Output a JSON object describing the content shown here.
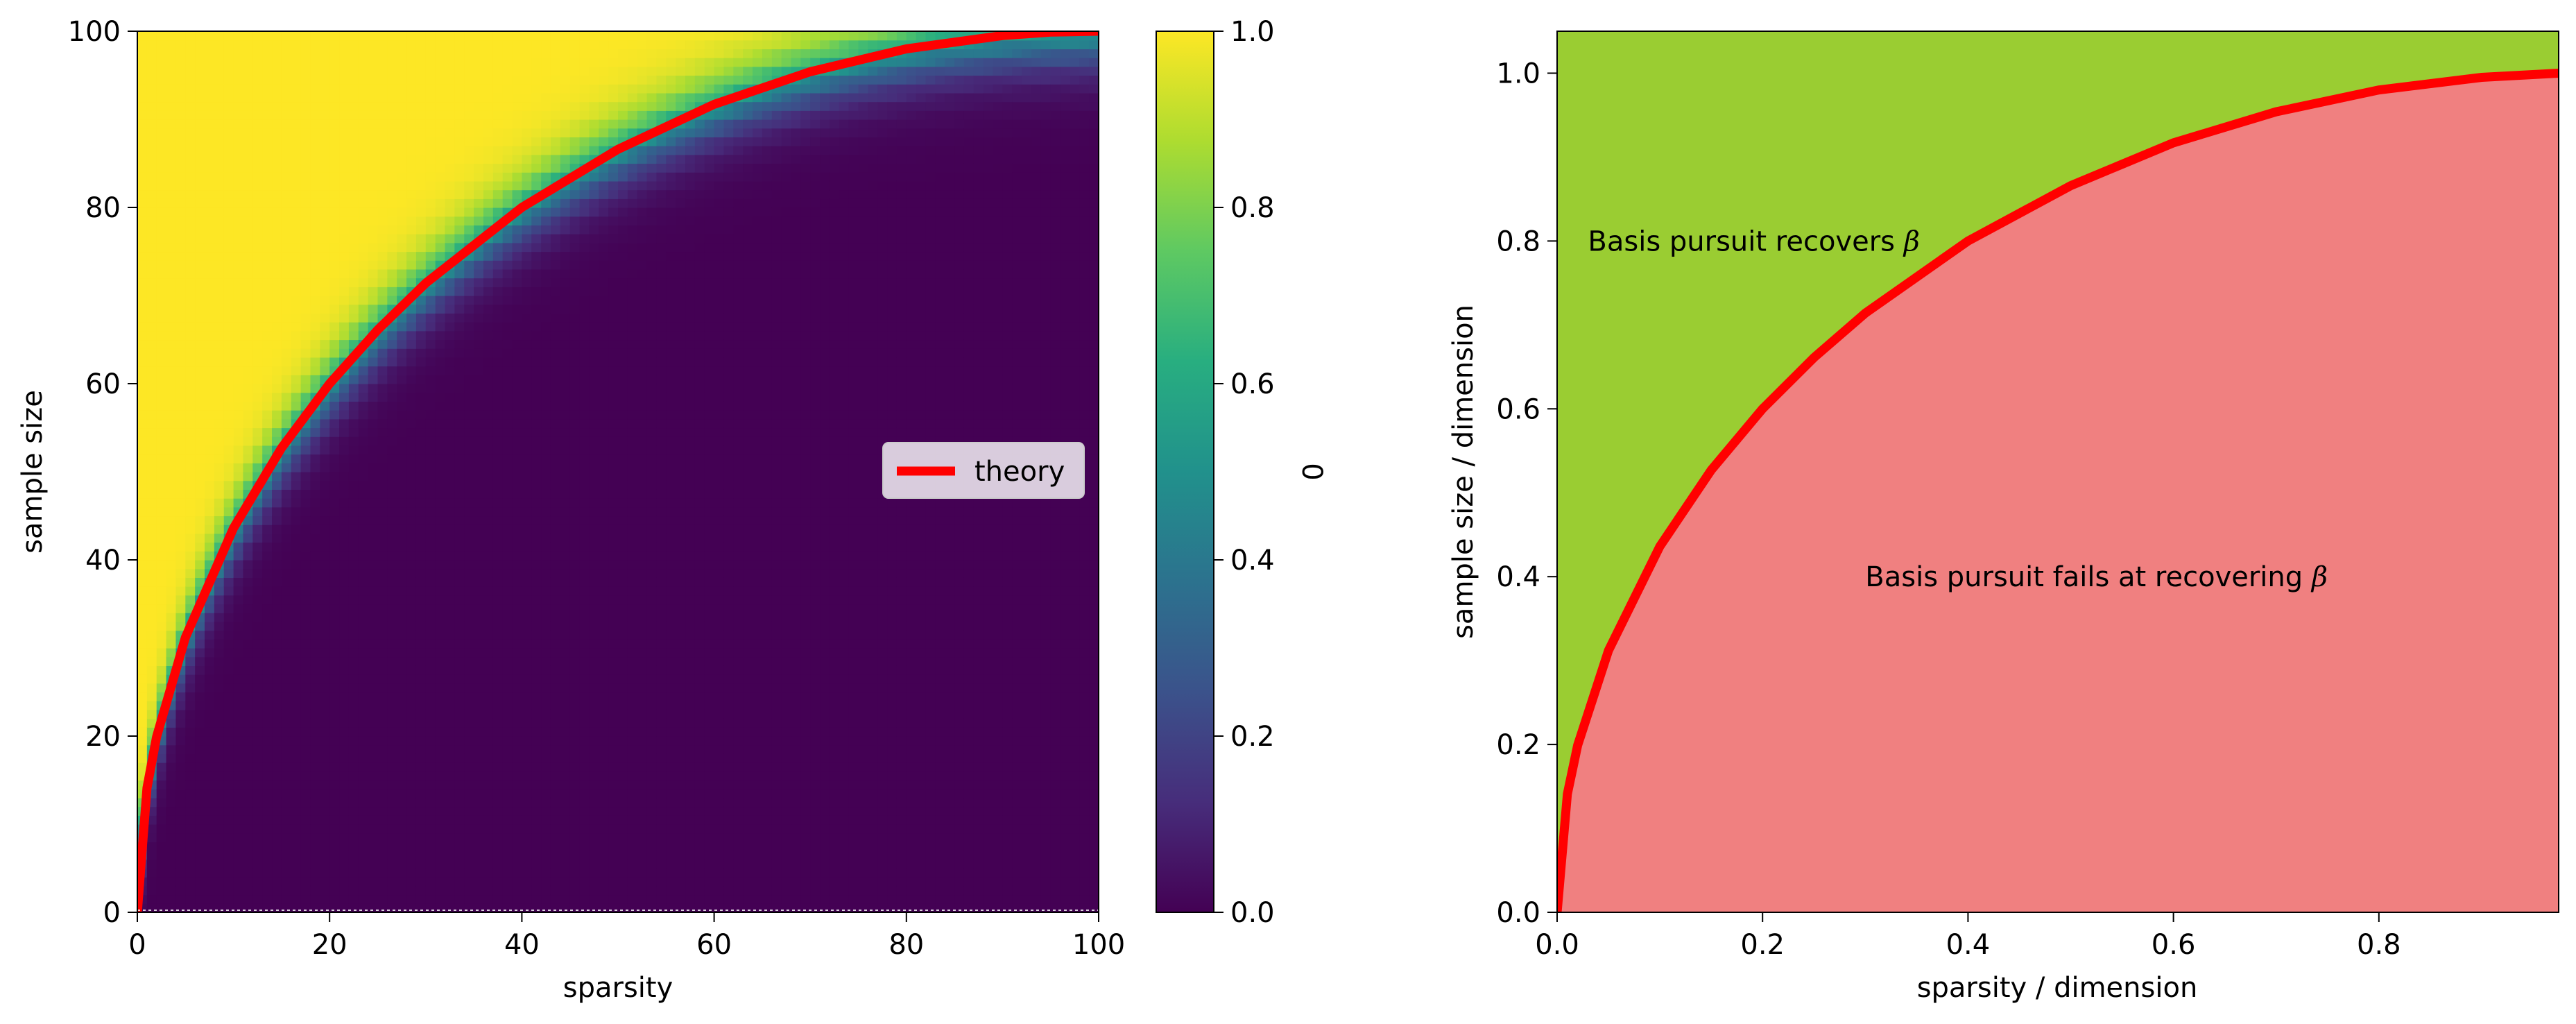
{
  "chart_data": [
    {
      "type": "heatmap",
      "xlabel": "sparsity",
      "ylabel": "sample size",
      "xlim": [
        0,
        100
      ],
      "ylim": [
        0,
        100
      ],
      "xticks": [
        "0",
        "20",
        "40",
        "60",
        "80",
        "100"
      ],
      "yticks": [
        "0",
        "20",
        "40",
        "60",
        "80",
        "100"
      ],
      "colormap": "viridis",
      "cell_size": 1,
      "value_range": [
        0,
        1
      ],
      "transition_width": 4,
      "transition_boundary": "n = 100 * sqrt(1 - (1 - s/100)^2)",
      "theory_series": {
        "name": "theory",
        "color": "#ff0000",
        "x": [
          0,
          1,
          2,
          5,
          10,
          15,
          20,
          25,
          30,
          40,
          50,
          60,
          70,
          80,
          90,
          95,
          100
        ],
        "y": [
          0,
          14.1,
          19.9,
          31.2,
          43.6,
          52.7,
          60.0,
          66.1,
          71.4,
          80.0,
          86.6,
          91.7,
          95.4,
          98.0,
          99.5,
          99.9,
          100
        ]
      },
      "legend": {
        "label": "theory",
        "placement": "center-right"
      },
      "colorbar": {
        "label": "0",
        "ticks": [
          "0.0",
          "0.2",
          "0.4",
          "0.6",
          "0.8",
          "1.0"
        ],
        "range": [
          0,
          1
        ]
      }
    },
    {
      "type": "area",
      "xlabel": "sparsity / dimension",
      "ylabel": "sample size / dimension",
      "xlim": [
        0,
        0.975
      ],
      "ylim": [
        0,
        1.05
      ],
      "xticks": [
        "0.0",
        "0.2",
        "0.4",
        "0.6",
        "0.8"
      ],
      "yticks": [
        "0.0",
        "0.2",
        "0.4",
        "0.6",
        "0.8",
        "1.0"
      ],
      "boundary": {
        "color": "#ff0000",
        "x": [
          0,
          0.01,
          0.02,
          0.05,
          0.1,
          0.15,
          0.2,
          0.25,
          0.3,
          0.4,
          0.5,
          0.6,
          0.7,
          0.8,
          0.9,
          0.975
        ],
        "y": [
          0,
          0.141,
          0.199,
          0.312,
          0.436,
          0.527,
          0.6,
          0.661,
          0.714,
          0.8,
          0.866,
          0.917,
          0.954,
          0.98,
          0.995,
          1.0
        ]
      },
      "regions": [
        {
          "name": "success",
          "color": "#9acd32",
          "position": "above boundary"
        },
        {
          "name": "failure",
          "color": "#f08080",
          "position": "below boundary"
        }
      ],
      "annotations": [
        {
          "text": "Basis pursuit recovers ",
          "symbol": "β",
          "x": 0.03,
          "y": 0.8
        },
        {
          "text": "Basis pursuit fails at recovering ",
          "symbol": "β",
          "x": 0.3,
          "y": 0.4
        }
      ]
    }
  ]
}
